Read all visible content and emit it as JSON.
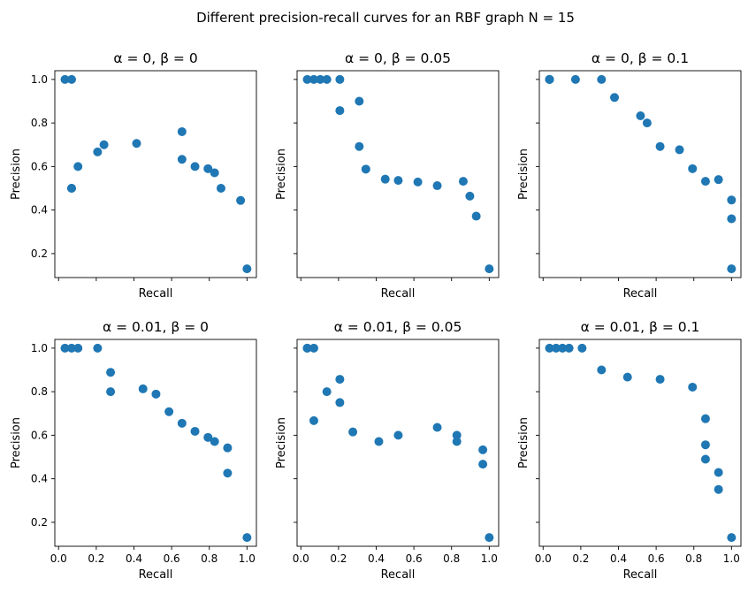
{
  "suptitle": "Different precision-recall curves for an RBF graph N = 15",
  "colors": {
    "marker": "#1f77b4"
  },
  "chart_data": [
    {
      "type": "scatter",
      "title": "α = 0, β = 0",
      "xlabel": "Recall",
      "ylabel": "Precision",
      "xlim": [
        -0.02,
        1.05
      ],
      "ylim": [
        0.09,
        1.04
      ],
      "xticks": [
        0.0,
        0.2,
        0.4,
        0.6,
        0.8,
        1.0
      ],
      "yticks": [
        0.2,
        0.4,
        0.6,
        0.8,
        1.0
      ],
      "show_xticklabels": false,
      "show_yticklabels": true,
      "x": [
        0.034,
        0.069,
        0.069,
        0.069,
        0.103,
        0.207,
        0.241,
        0.414,
        0.655,
        0.655,
        0.724,
        0.793,
        0.828,
        0.862,
        0.966,
        1.0
      ],
      "y": [
        1.0,
        1.0,
        0.5,
        0.5,
        0.6,
        0.667,
        0.7,
        0.706,
        0.76,
        0.633,
        0.6,
        0.59,
        0.571,
        0.5,
        0.444,
        0.13
      ]
    },
    {
      "type": "scatter",
      "title": "α = 0, β = 0.05",
      "xlabel": "Recall",
      "ylabel": "Precision",
      "xlim": [
        -0.02,
        1.05
      ],
      "ylim": [
        0.09,
        1.04
      ],
      "xticks": [
        0.0,
        0.2,
        0.4,
        0.6,
        0.8,
        1.0
      ],
      "yticks": [
        0.2,
        0.4,
        0.6,
        0.8,
        1.0
      ],
      "show_xticklabels": false,
      "show_yticklabels": false,
      "x": [
        0.034,
        0.069,
        0.103,
        0.138,
        0.207,
        0.207,
        0.31,
        0.31,
        0.345,
        0.448,
        0.517,
        0.621,
        0.724,
        0.862,
        0.897,
        0.931,
        1.0
      ],
      "y": [
        1.0,
        1.0,
        1.0,
        1.0,
        1.0,
        0.857,
        0.9,
        0.692,
        0.588,
        0.542,
        0.536,
        0.529,
        0.512,
        0.532,
        0.464,
        0.372,
        0.13
      ]
    },
    {
      "type": "scatter",
      "title": "α = 0, β = 0.1",
      "xlabel": "Recall",
      "ylabel": "Precision",
      "xlim": [
        -0.02,
        1.05
      ],
      "ylim": [
        0.09,
        1.04
      ],
      "xticks": [
        0.0,
        0.2,
        0.4,
        0.6,
        0.8,
        1.0
      ],
      "yticks": [
        0.2,
        0.4,
        0.6,
        0.8,
        1.0
      ],
      "show_xticklabels": false,
      "show_yticklabels": false,
      "x": [
        0.034,
        0.034,
        0.034,
        0.172,
        0.31,
        0.379,
        0.517,
        0.552,
        0.621,
        0.724,
        0.793,
        0.862,
        0.931,
        1.0,
        1.0,
        1.0
      ],
      "y": [
        1.0,
        1.0,
        1.0,
        1.0,
        1.0,
        0.917,
        0.833,
        0.8,
        0.692,
        0.677,
        0.59,
        0.532,
        0.54,
        0.446,
        0.36,
        0.13
      ]
    },
    {
      "type": "scatter",
      "title": "α = 0.01, β = 0",
      "xlabel": "Recall",
      "ylabel": "Precision",
      "xlim": [
        -0.02,
        1.05
      ],
      "ylim": [
        0.09,
        1.04
      ],
      "xticks": [
        0.0,
        0.2,
        0.4,
        0.6,
        0.8,
        1.0
      ],
      "xticklabels": [
        "0.0",
        "0.2",
        "0.4",
        "0.6",
        "0.8",
        "1.0"
      ],
      "yticks": [
        0.2,
        0.4,
        0.6,
        0.8,
        1.0
      ],
      "show_xticklabels": true,
      "show_yticklabels": true,
      "x": [
        0.034,
        0.069,
        0.103,
        0.207,
        0.276,
        0.276,
        0.448,
        0.517,
        0.586,
        0.655,
        0.724,
        0.793,
        0.828,
        0.897,
        0.897,
        1.0
      ],
      "y": [
        1.0,
        1.0,
        1.0,
        1.0,
        0.889,
        0.8,
        0.813,
        0.789,
        0.708,
        0.655,
        0.618,
        0.59,
        0.571,
        0.542,
        0.426,
        0.13
      ]
    },
    {
      "type": "scatter",
      "title": "α = 0.01, β = 0.05",
      "xlabel": "Recall",
      "ylabel": "Precision",
      "xlim": [
        -0.02,
        1.05
      ],
      "ylim": [
        0.09,
        1.04
      ],
      "xticks": [
        0.0,
        0.2,
        0.4,
        0.6,
        0.8,
        1.0
      ],
      "xticklabels": [
        "0.0",
        "0.2",
        "0.4",
        "0.6",
        "0.8",
        "1.0"
      ],
      "yticks": [
        0.2,
        0.4,
        0.6,
        0.8,
        1.0
      ],
      "show_xticklabels": true,
      "show_yticklabels": false,
      "x": [
        0.034,
        0.034,
        0.069,
        0.069,
        0.138,
        0.207,
        0.207,
        0.276,
        0.414,
        0.517,
        0.724,
        0.828,
        0.828,
        0.966,
        0.966,
        1.0
      ],
      "y": [
        1.0,
        1.0,
        1.0,
        0.667,
        0.8,
        0.857,
        0.75,
        0.615,
        0.571,
        0.6,
        0.636,
        0.6,
        0.571,
        0.533,
        0.467,
        0.13
      ]
    },
    {
      "type": "scatter",
      "title": "α = 0.01, β = 0.1",
      "xlabel": "Recall",
      "ylabel": "Precision",
      "xlim": [
        -0.02,
        1.05
      ],
      "ylim": [
        0.09,
        1.04
      ],
      "xticks": [
        0.0,
        0.2,
        0.4,
        0.6,
        0.8,
        1.0
      ],
      "xticklabels": [
        "0.0",
        "0.2",
        "0.4",
        "0.6",
        "0.8",
        "1.0"
      ],
      "yticks": [
        0.2,
        0.4,
        0.6,
        0.8,
        1.0
      ],
      "show_xticklabels": true,
      "show_yticklabels": false,
      "x": [
        0.034,
        0.069,
        0.103,
        0.138,
        0.207,
        0.31,
        0.448,
        0.621,
        0.793,
        0.862,
        0.862,
        0.862,
        0.931,
        0.931,
        1.0
      ],
      "y": [
        1.0,
        1.0,
        1.0,
        1.0,
        1.0,
        0.9,
        0.867,
        0.857,
        0.821,
        0.676,
        0.556,
        0.49,
        0.429,
        0.351,
        0.13
      ]
    }
  ]
}
